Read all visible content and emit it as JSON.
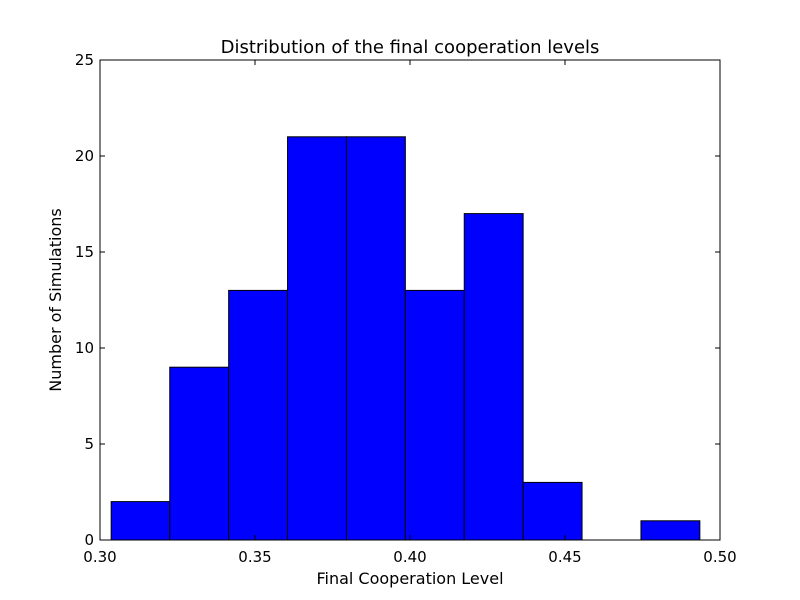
{
  "chart_data": {
    "type": "bar",
    "subtype": "histogram",
    "title": "Distribution of the final cooperation levels",
    "xlabel": "Final Cooperation Level",
    "ylabel": "Number of Simulations",
    "xlim": [
      0.3,
      0.5
    ],
    "ylim": [
      0,
      25
    ],
    "xticks": [
      "0.30",
      "0.35",
      "0.40",
      "0.45",
      "0.50"
    ],
    "yticks": [
      "0",
      "5",
      "10",
      "15",
      "20",
      "25"
    ],
    "bins": [
      {
        "start": 0.3036,
        "end": 0.3225,
        "count": 2
      },
      {
        "start": 0.3225,
        "end": 0.3415,
        "count": 9
      },
      {
        "start": 0.3415,
        "end": 0.3605,
        "count": 13
      },
      {
        "start": 0.3605,
        "end": 0.3795,
        "count": 21
      },
      {
        "start": 0.3795,
        "end": 0.3985,
        "count": 21
      },
      {
        "start": 0.3985,
        "end": 0.4175,
        "count": 13
      },
      {
        "start": 0.4175,
        "end": 0.4365,
        "count": 17
      },
      {
        "start": 0.4365,
        "end": 0.4555,
        "count": 3
      },
      {
        "start": 0.4555,
        "end": 0.4745,
        "count": 0
      },
      {
        "start": 0.4745,
        "end": 0.4935,
        "count": 1
      }
    ],
    "grid": false,
    "bar_color": "#0000ff",
    "edge_color": "#000000"
  }
}
